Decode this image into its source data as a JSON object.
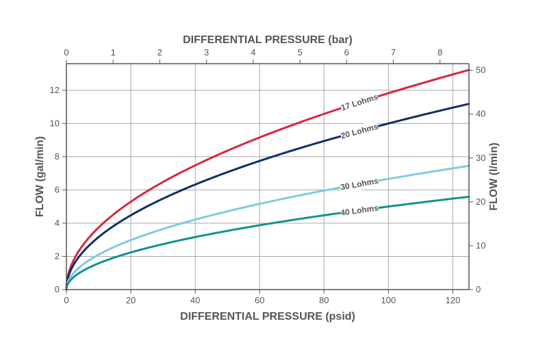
{
  "chart_data": {
    "type": "line",
    "title": "",
    "xlabel": "DIFFERENTIAL PRESSURE (psid)",
    "x2label": "DIFFERENTIAL PRESSURE (bar)",
    "ylabel": "FLOW (gal/min)",
    "y2label": "FLOW (l/min)",
    "xlim": [
      0,
      125
    ],
    "ylim": [
      0,
      13.6
    ],
    "x2lim": [
      0,
      8.62
    ],
    "y2lim": [
      0,
      51.5
    ],
    "x_ticks": [
      0,
      20,
      40,
      60,
      80,
      100,
      120
    ],
    "y_ticks": [
      0,
      2,
      4,
      6,
      8,
      10,
      12
    ],
    "x2_ticks": [
      0,
      1,
      2,
      3,
      4,
      5,
      6,
      7,
      8
    ],
    "y2_ticks": [
      0,
      10,
      20,
      30,
      40,
      50
    ],
    "grid": true,
    "legend": "inline labels on curves",
    "x": [
      0,
      5,
      10,
      20,
      30,
      40,
      50,
      60,
      70,
      80,
      90,
      100,
      110,
      120,
      125
    ],
    "series": [
      {
        "name": "17 Lohms",
        "color": "#d7263d",
        "values": [
          0,
          2.64,
          3.74,
          5.29,
          6.48,
          7.48,
          8.36,
          9.16,
          9.89,
          10.58,
          11.22,
          11.82,
          12.4,
          12.95,
          13.22
        ]
      },
      {
        "name": "20 Lohms",
        "color": "#0c3060",
        "values": [
          0,
          2.24,
          3.16,
          4.47,
          5.48,
          6.32,
          7.07,
          7.75,
          8.37,
          8.94,
          9.49,
          10.0,
          10.49,
          10.95,
          11.18
        ]
      },
      {
        "name": "30 Lohms",
        "color": "#7ecbe0",
        "values": [
          0,
          1.49,
          2.11,
          2.98,
          3.65,
          4.22,
          4.71,
          5.16,
          5.58,
          5.96,
          6.32,
          6.67,
          6.99,
          7.3,
          7.45
        ]
      },
      {
        "name": "40 Lohms",
        "color": "#13908f",
        "values": [
          0,
          1.12,
          1.58,
          2.24,
          2.74,
          3.16,
          3.54,
          3.87,
          4.18,
          4.47,
          4.74,
          5.0,
          5.24,
          5.48,
          5.59
        ]
      }
    ],
    "label_positions_x": [
      91,
      91,
      91,
      91
    ]
  }
}
